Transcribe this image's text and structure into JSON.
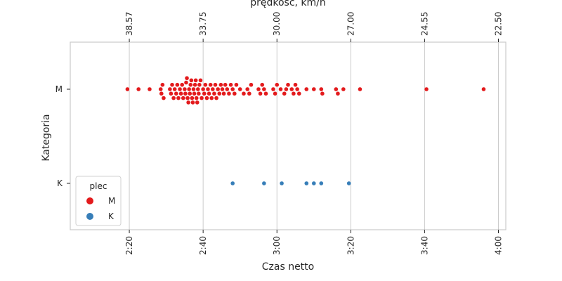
{
  "chart_data": {
    "type": "scatter",
    "subtype": "swarm",
    "xlabel": "Czas netto",
    "xlabel_top": "prędkość, km/h",
    "ylabel": "Kategoria",
    "x_unit": "minutes",
    "xlim": [
      124,
      242
    ],
    "x_ticks": [
      {
        "value": 140,
        "label": "2:20"
      },
      {
        "value": 160,
        "label": "2:40"
      },
      {
        "value": 180,
        "label": "3:00"
      },
      {
        "value": 200,
        "label": "3:20"
      },
      {
        "value": 220,
        "label": "3:40"
      },
      {
        "value": 240,
        "label": "4:00"
      }
    ],
    "x_ticks_top": [
      "38.57",
      "33.75",
      "30.00",
      "27.00",
      "24.55",
      "22.50"
    ],
    "categories": [
      "M",
      "K"
    ],
    "grid": "vertical",
    "legend": {
      "title": "plec",
      "placement": "lower-left",
      "entries": [
        {
          "label": "M",
          "color": "#e31a1c"
        },
        {
          "label": "K",
          "color": "#377eb8"
        }
      ]
    },
    "series": [
      {
        "name": "M",
        "category": "M",
        "color": "#e31a1c",
        "values": [
          139.5,
          142.5,
          145.5,
          148.5,
          148.7,
          149.0,
          149.3,
          151.0,
          151.3,
          151.6,
          152.0,
          152.3,
          152.7,
          153.0,
          153.3,
          153.7,
          154.0,
          154.3,
          154.6,
          155.0,
          155.2,
          155.4,
          155.6,
          155.8,
          156.0,
          156.2,
          156.4,
          156.6,
          156.8,
          157.0,
          157.2,
          157.4,
          157.6,
          157.8,
          158.0,
          158.2,
          158.4,
          158.6,
          158.8,
          159.0,
          159.3,
          159.6,
          160.0,
          160.3,
          160.6,
          161.0,
          161.3,
          161.6,
          162.0,
          162.3,
          162.6,
          163.0,
          163.3,
          163.6,
          164.0,
          164.4,
          164.8,
          165.2,
          165.6,
          166.0,
          166.5,
          167.0,
          167.5,
          168.0,
          168.5,
          169.0,
          170.0,
          171.0,
          172.0,
          172.5,
          173.0,
          175.0,
          175.5,
          176.0,
          176.5,
          177.0,
          179.0,
          179.5,
          180.0,
          181.0,
          182.0,
          182.5,
          183.0,
          184.0,
          184.5,
          185.0,
          185.5,
          186.0,
          188.0,
          190.0,
          192.0,
          192.3,
          196.0,
          196.5,
          198.0,
          202.5,
          220.5,
          236.0
        ]
      },
      {
        "name": "K",
        "category": "K",
        "color": "#377eb8",
        "values": [
          168.0,
          176.5,
          181.3,
          188.0,
          190.0,
          192.0,
          199.5
        ]
      }
    ]
  }
}
